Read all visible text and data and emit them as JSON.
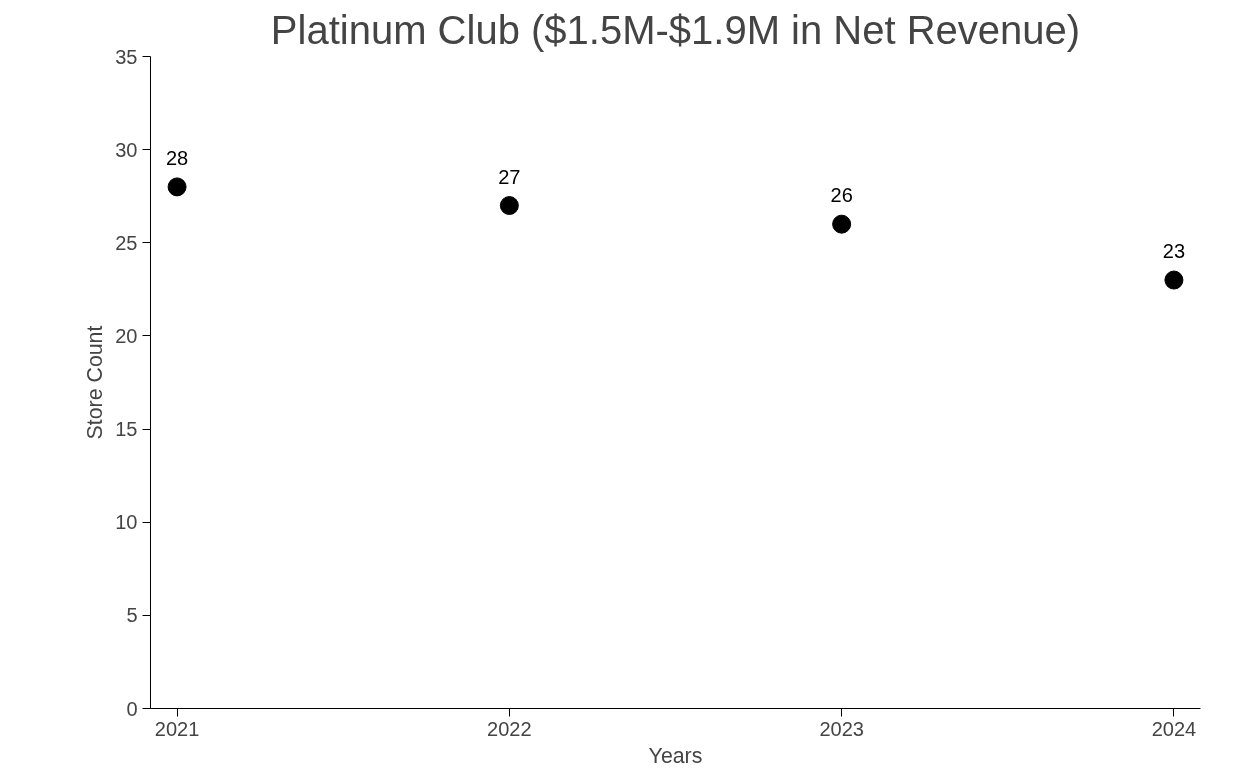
{
  "chart_data": {
    "type": "scatter",
    "title": "Platinum Club ($1.5M-$1.9M in Net Revenue)",
    "xlabel": "Years",
    "ylabel": "Store Count",
    "x": [
      2021,
      2022,
      2023,
      2024
    ],
    "series": [
      {
        "color": "#000000",
        "values": [
          28,
          27,
          26,
          23
        ]
      }
    ],
    "xlim": [
      2020.92,
      2024.08
    ],
    "xticks": [
      2021,
      2022,
      2023,
      2024
    ],
    "ylim": [
      0,
      35
    ],
    "yticks": [
      0,
      5,
      10,
      15,
      20,
      25,
      30,
      35
    ],
    "marker": "circle",
    "data_labels": true,
    "grid": false
  }
}
